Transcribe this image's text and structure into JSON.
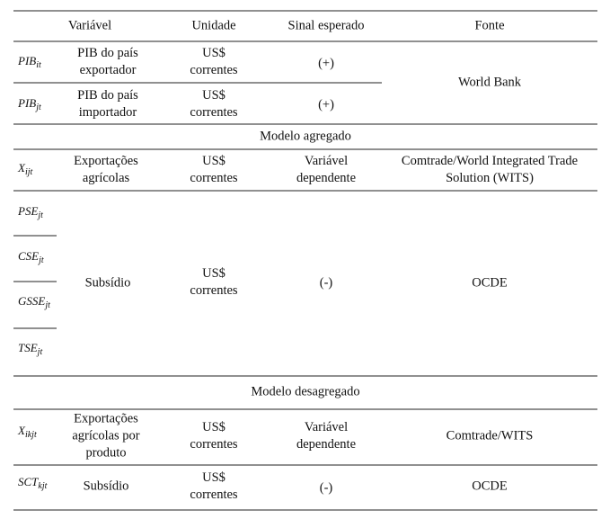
{
  "table": {
    "header": [
      "Variável",
      "Unidade",
      "Sinal esperado",
      "Fonte"
    ],
    "rows": [
      {
        "symbol": {
          "base": "PIB",
          "sub": "it"
        },
        "name": [
          "PIB do país",
          "exportador"
        ],
        "unit": [
          "US$",
          "correntes"
        ],
        "sign": "(+)"
      },
      {
        "symbol": {
          "base": "PIB",
          "sub": "jt"
        },
        "name": [
          "PIB do país",
          "importador"
        ],
        "unit": [
          "US$",
          "correntes"
        ],
        "sign": "(+)"
      }
    ],
    "source_pib": "World Bank",
    "section_aggregated": "Modelo agregado",
    "exports_row": {
      "symbol": {
        "base": "X",
        "sub": "ijt"
      },
      "name": [
        "Exportações",
        "agrícolas"
      ],
      "unit": [
        "US$",
        "correntes"
      ],
      "sign": [
        "Variável",
        "dependente"
      ],
      "source": [
        "Comtrade/World Integrated Trade",
        "Solution (WITS)"
      ]
    },
    "subsidy_row": {
      "symbols": [
        {
          "base": "PSE",
          "sub": "jt"
        },
        {
          "base": "CSE",
          "sub": "jt"
        },
        {
          "base": "GSSE",
          "sub": "jt"
        },
        {
          "base": "TSE",
          "sub": "jt"
        }
      ],
      "name": "Subsídio",
      "unit": [
        "US$",
        "correntes"
      ],
      "sign": "(-)",
      "source": "OCDE"
    },
    "section_disaggregated": "Modelo desagregado",
    "product_exports_row": {
      "symbol": {
        "base": "X",
        "sub": "ikjt"
      },
      "name": [
        "Exportações",
        "agrícolas por",
        "produto"
      ],
      "unit": [
        "US$",
        "correntes"
      ],
      "sign": [
        "Variável",
        "dependente"
      ],
      "source": "Comtrade/WITS"
    },
    "product_subsidy_row": {
      "symbol": {
        "base": "SCT",
        "sub": "kjt"
      },
      "name": "Subsídio",
      "unit": [
        "US$",
        "correntes"
      ],
      "sign": "(-)",
      "source": "OCDE"
    }
  }
}
